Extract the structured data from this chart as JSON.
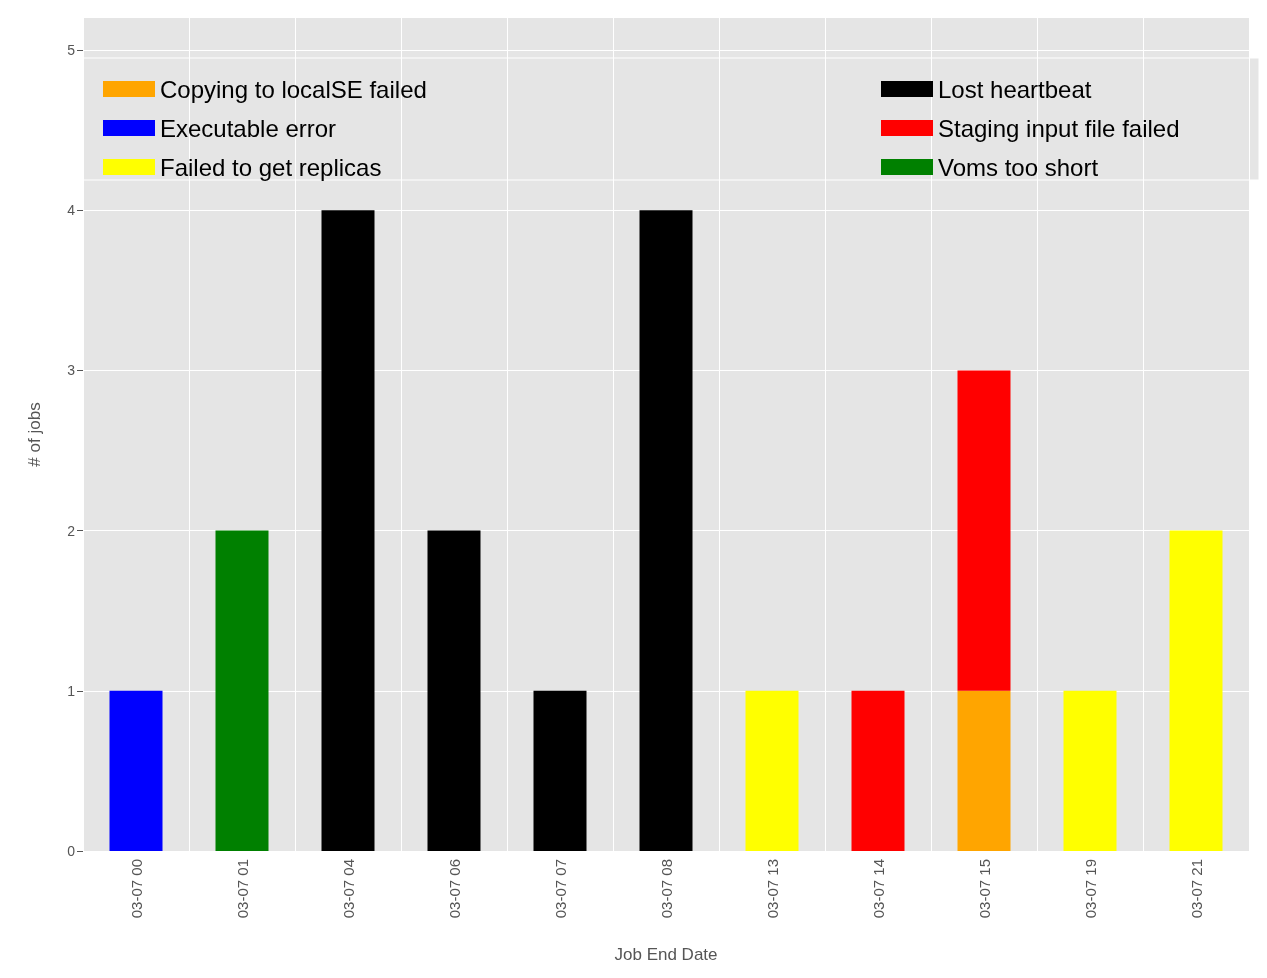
{
  "chart_data": {
    "type": "bar",
    "stacked": true,
    "xlabel": "Job End Date",
    "ylabel": "# of jobs",
    "categories": [
      "03-07 00",
      "03-07 01",
      "03-07 04",
      "03-07 06",
      "03-07 07",
      "03-07 08",
      "03-07 13",
      "03-07 14",
      "03-07 15",
      "03-07 19",
      "03-07 21"
    ],
    "series": [
      {
        "name": "Copying to localSE failed",
        "color": "#ffa500",
        "values": [
          null,
          null,
          null,
          null,
          null,
          null,
          null,
          null,
          1,
          null,
          null
        ]
      },
      {
        "name": "Executable error",
        "color": "#0000ff",
        "values": [
          1,
          null,
          null,
          null,
          null,
          null,
          null,
          null,
          null,
          null,
          null
        ]
      },
      {
        "name": "Failed to get replicas",
        "color": "#ffff00",
        "values": [
          null,
          null,
          null,
          null,
          null,
          null,
          1,
          null,
          null,
          1,
          2
        ]
      },
      {
        "name": "Lost heartbeat",
        "color": "#000000",
        "values": [
          null,
          null,
          4,
          2,
          1,
          4,
          null,
          null,
          null,
          null,
          null
        ]
      },
      {
        "name": "Staging input file failed",
        "color": "#ff0000",
        "values": [
          null,
          null,
          null,
          null,
          null,
          null,
          null,
          1,
          2,
          null,
          null
        ]
      },
      {
        "name": "Voms too short",
        "color": "#008000",
        "values": [
          null,
          2,
          null,
          null,
          null,
          null,
          null,
          null,
          null,
          null,
          null
        ]
      }
    ],
    "ylim": [
      0,
      5.2
    ],
    "yticks": [
      0,
      1,
      2,
      3,
      4,
      5
    ],
    "grid": true,
    "legend": "top"
  }
}
